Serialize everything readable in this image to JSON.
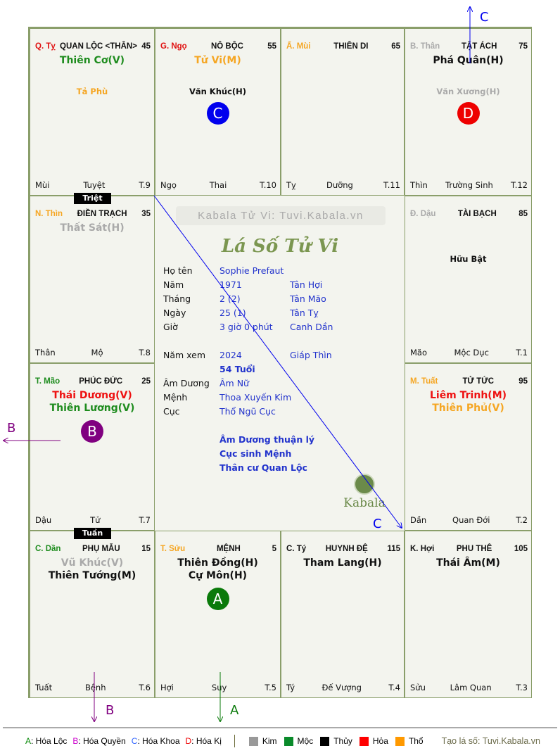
{
  "palaces": [
    {
      "can": "Q. Tỵ",
      "can_color": "#e01010",
      "name": "QUAN LỘC <THÂN>",
      "number": "45",
      "major": [
        {
          "text": "Thiên Cơ(V)",
          "color": "#1e8c1e"
        }
      ],
      "minor": [
        {
          "text": "Tả Phù",
          "color": "#f5a623"
        }
      ],
      "badge": null,
      "branch": "Mùi",
      "stage": "Tuyệt",
      "month": "T.9"
    },
    {
      "can": "G. Ngọ",
      "can_color": "#e01010",
      "name": "NÔ BỘC",
      "number": "55",
      "major": [
        {
          "text": "Tử Vi(M)",
          "color": "#f5a623"
        }
      ],
      "minor": [
        {
          "text": "Văn Khúc(H)",
          "color": "#111111"
        }
      ],
      "badge": {
        "letter": "C",
        "color": "#0000ee"
      },
      "branch": "Ngọ",
      "stage": "Thai",
      "month": "T.10"
    },
    {
      "can": "Ấ. Mùi",
      "can_color": "#f5a623",
      "name": "THIÊN DI",
      "number": "65",
      "major": [],
      "minor": [],
      "badge": null,
      "branch": "Tỵ",
      "stage": "Dưỡng",
      "month": "T.11"
    },
    {
      "can": "B. Thân",
      "can_color": "#aaaaaa",
      "name": "TẬT ÁCH",
      "number": "75",
      "major": [
        {
          "text": "Phá Quân(H)",
          "color": "#111111"
        }
      ],
      "minor": [
        {
          "text": "Văn Xương(H)",
          "color": "#aaaaaa"
        }
      ],
      "badge": {
        "letter": "D",
        "color": "#ee0000"
      },
      "branch": "Thìn",
      "stage": "Trường Sinh",
      "month": "T.12"
    },
    {
      "can": "N. Thìn",
      "can_color": "#f5a623",
      "name": "ĐIỀN TRẠCH",
      "number": "35",
      "major": [
        {
          "text": "Thất Sát(H)",
          "color": "#aaaaaa"
        }
      ],
      "minor": [],
      "badge": null,
      "branch": "Thân",
      "stage": "Mộ",
      "month": "T.8"
    },
    {
      "can": "Đ. Dậu",
      "can_color": "#aaaaaa",
      "name": "TÀI BẠCH",
      "number": "85",
      "major": [],
      "minor": [
        {
          "text": "Hữu Bật",
          "color": "#111111"
        }
      ],
      "badge": null,
      "branch": "Mão",
      "stage": "Mộc Dục",
      "month": "T.1"
    },
    {
      "can": "T. Mão",
      "can_color": "#1e8c1e",
      "name": "PHÚC ĐỨC",
      "number": "25",
      "major": [
        {
          "text": "Thái Dương(V)",
          "color": "#ee1111"
        },
        {
          "text": "Thiên Lương(V)",
          "color": "#1e8c1e"
        }
      ],
      "minor": [],
      "badge": {
        "letter": "B",
        "color": "#800080"
      },
      "branch": "Dậu",
      "stage": "Tử",
      "month": "T.7"
    },
    {
      "can": "M. Tuất",
      "can_color": "#f5a623",
      "name": "TỬ TỨC",
      "number": "95",
      "major": [
        {
          "text": "Liêm Trinh(M)",
          "color": "#ee1111"
        },
        {
          "text": "Thiên Phủ(V)",
          "color": "#f5a623"
        }
      ],
      "minor": [],
      "badge": null,
      "branch": "Dần",
      "stage": "Quan Đới",
      "month": "T.2"
    },
    {
      "can": "C. Dần",
      "can_color": "#1e8c1e",
      "name": "PHỤ MẪU",
      "number": "15",
      "major": [
        {
          "text": "Vũ Khúc(V)",
          "color": "#aaaaaa"
        },
        {
          "text": "Thiên Tướng(M)",
          "color": "#111111"
        }
      ],
      "minor": [],
      "badge": null,
      "branch": "Tuất",
      "stage": "Bệnh",
      "month": "T.6"
    },
    {
      "can": "T. Sửu",
      "can_color": "#f5a623",
      "name": "MỆNH",
      "number": "5",
      "major": [
        {
          "text": "Thiên Đồng(H)",
          "color": "#111111"
        },
        {
          "text": "Cự Môn(H)",
          "color": "#111111"
        }
      ],
      "minor": [],
      "badge": {
        "letter": "A",
        "color": "#0a7a0a"
      },
      "branch": "Hợi",
      "stage": "Suy",
      "month": "T.5"
    },
    {
      "can": "C. Tý",
      "can_color": "#111111",
      "name": "HUYNH ĐỆ",
      "number": "115",
      "major": [
        {
          "text": "Tham Lang(H)",
          "color": "#111111"
        }
      ],
      "minor": [],
      "badge": null,
      "branch": "Tý",
      "stage": "Đế Vượng",
      "month": "T.4"
    },
    {
      "can": "K. Hợi",
      "can_color": "#111111",
      "name": "PHU THÊ",
      "number": "105",
      "major": [
        {
          "text": "Thái Âm(M)",
          "color": "#111111"
        }
      ],
      "minor": [],
      "badge": null,
      "branch": "Sửu",
      "stage": "Lâm Quan",
      "month": "T.3"
    }
  ],
  "tags": {
    "triet": "Triệt",
    "tuan": "Tuần"
  },
  "center": {
    "watermark": "Kabala Tử Vi: Tuvi.Kabala.vn",
    "title": "Lá Số Tử Vi",
    "rows": [
      {
        "label": "Họ tên",
        "value": "Sophie Prefaut",
        "extra": ""
      },
      {
        "label": "Năm",
        "value": "1971",
        "extra": "Tân Hợi"
      },
      {
        "label": "Tháng",
        "value": "2  (2)",
        "extra": "Tân Mão"
      },
      {
        "label": "Ngày",
        "value": "25  (1)",
        "extra": "Tân Tỵ"
      },
      {
        "label": "Giờ",
        "value": "3 giờ 0 phút",
        "extra": "Canh Dần"
      },
      {
        "label": "",
        "value": "",
        "extra": ""
      },
      {
        "label": "Năm xem",
        "value": "2024",
        "extra": "Giáp Thìn"
      },
      {
        "label": "",
        "value": "54 Tuổi",
        "extra": "",
        "bold": true
      },
      {
        "label": "Âm Dương",
        "value": "Âm Nữ",
        "extra": ""
      },
      {
        "label": "Mệnh",
        "value": "Thoa Xuyến Kim",
        "extra": ""
      },
      {
        "label": "Cục",
        "value": "Thổ Ngũ Cục",
        "extra": ""
      },
      {
        "label": "",
        "value": "",
        "extra": ""
      },
      {
        "label": "",
        "value": "Âm Dương thuận lý",
        "extra": "",
        "bold": true
      },
      {
        "label": "",
        "value": "Cục sinh Mệnh",
        "extra": "",
        "bold": true
      },
      {
        "label": "",
        "value": "Thân cư Quan Lộc",
        "extra": "",
        "bold": true
      }
    ],
    "logo_text": "Kabala"
  },
  "arrows": {
    "a": "A",
    "b": "B",
    "c": "C"
  },
  "arrow_colors": {
    "a": "#0a7a0a",
    "b": "#800080",
    "c": "#0000ee"
  },
  "legend": {
    "hoa": [
      {
        "letter": "A",
        "text": ": Hóa Lộc",
        "color": "#0a8a0a"
      },
      {
        "letter": "B",
        "text": ": Hóa Quyền",
        "color": "#cc00cc"
      },
      {
        "letter": "C",
        "text": ": Hóa Khoa",
        "color": "#3366ff"
      },
      {
        "letter": "D",
        "text": ": Hóa Kị",
        "color": "#ee0000"
      }
    ],
    "elements": [
      {
        "name": "Kim",
        "color": "#999999"
      },
      {
        "name": "Mộc",
        "color": "#0a8a2a"
      },
      {
        "name": "Thủy",
        "color": "#000000"
      },
      {
        "name": "Hỏa",
        "color": "#ff0000"
      },
      {
        "name": "Thổ",
        "color": "#ff9900"
      }
    ],
    "credit": "Tạo lá số: Tuvi.Kabala.vn"
  }
}
